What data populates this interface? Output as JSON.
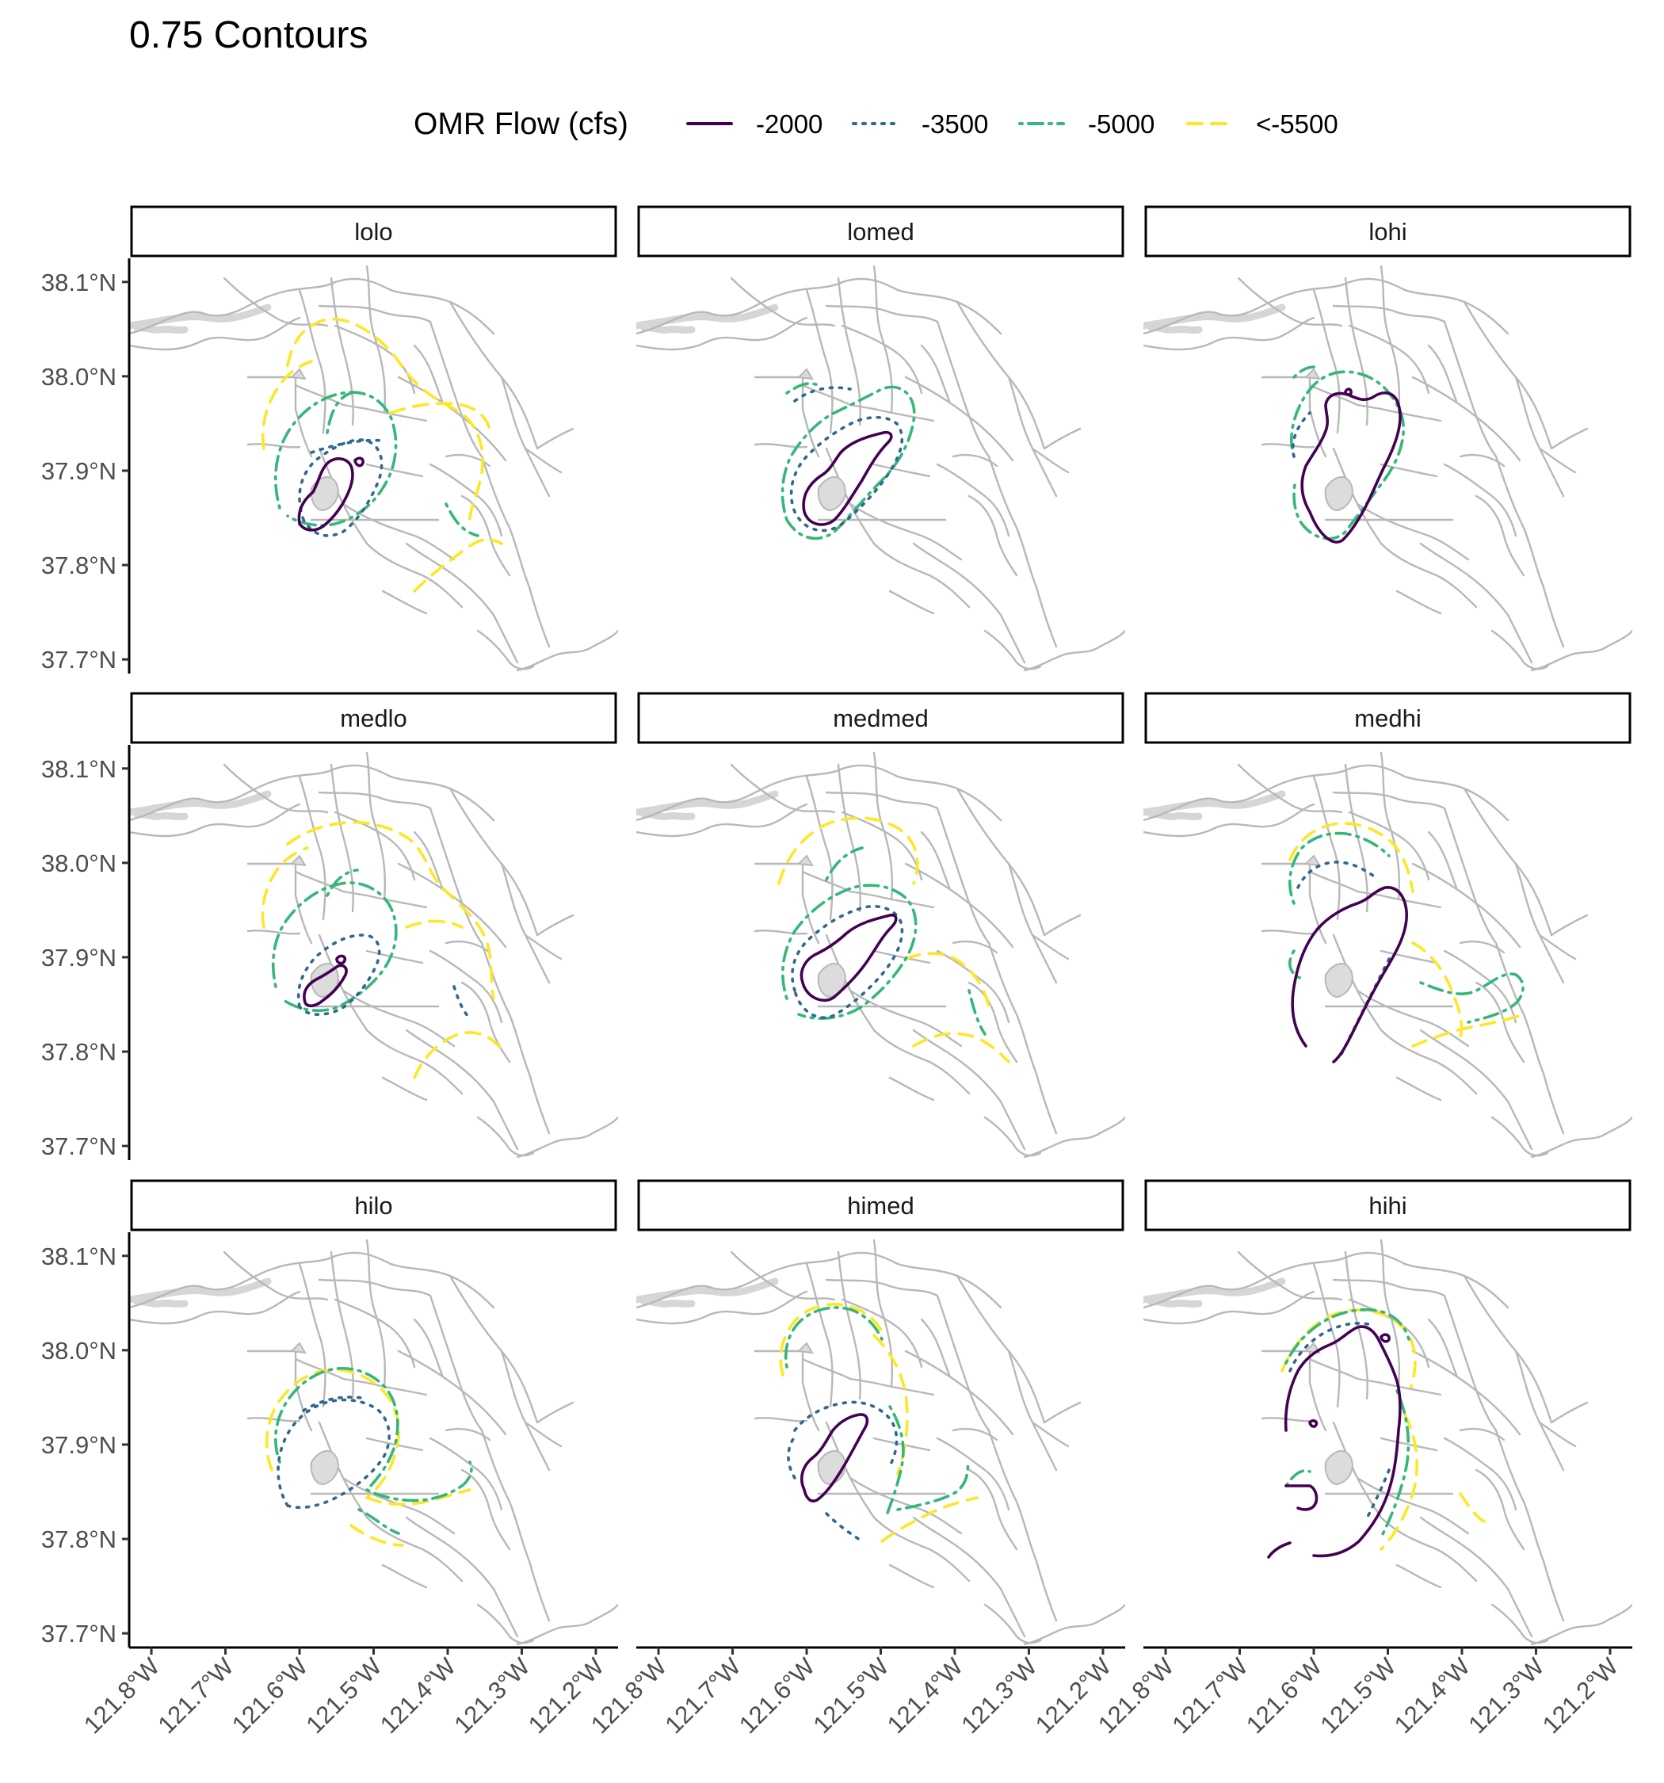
{
  "title": "0.75 Contours",
  "legend": {
    "title": "OMR Flow (cfs)",
    "items": [
      {
        "label": "-2000",
        "color": "#440154",
        "dash": "solid"
      },
      {
        "label": "-3500",
        "color": "#31688E",
        "dash": "dotted"
      },
      {
        "label": "-5000",
        "color": "#35B779",
        "dash": "dotdash"
      },
      {
        "label": "<-5500",
        "color": "#FDE725",
        "dash": "dashed"
      }
    ]
  },
  "axes": {
    "y_ticks": [
      "38.1°N",
      "38.0°N",
      "37.9°N",
      "37.8°N",
      "37.7°N"
    ],
    "y_values": [
      38.1,
      38.0,
      37.9,
      37.8,
      37.7
    ],
    "x_ticks": [
      "121.8°W",
      "121.7°W",
      "121.6°W",
      "121.5°W",
      "121.4°W",
      "121.3°W",
      "121.2°W"
    ],
    "x_values": [
      -121.8,
      -121.7,
      -121.6,
      -121.5,
      -121.4,
      -121.3,
      -121.2
    ],
    "lon_range": [
      -121.83,
      -121.17
    ],
    "lat_range": [
      37.685,
      38.125
    ]
  },
  "panels": [
    {
      "label": "lolo"
    },
    {
      "label": "lomed"
    },
    {
      "label": "lohi"
    },
    {
      "label": "medlo"
    },
    {
      "label": "medmed"
    },
    {
      "label": "medhi"
    },
    {
      "label": "hilo"
    },
    {
      "label": "himed"
    },
    {
      "label": "hihi"
    }
  ]
}
